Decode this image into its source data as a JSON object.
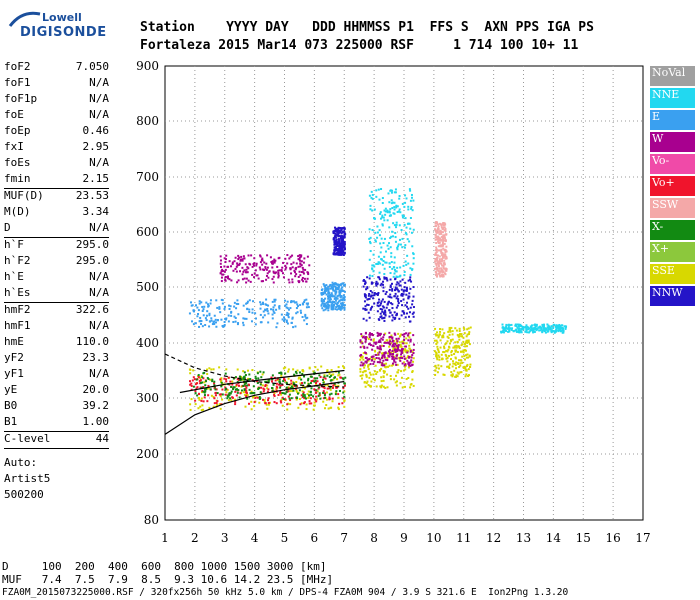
{
  "logo": {
    "line1": "Lowell",
    "line2": "DIGISONDE"
  },
  "header": {
    "row1": "Station    YYYY DAY   DDD HHMMSS P1  FFS S  AXN PPS IGA PS",
    "row2": "Fortaleza 2015 Mar14 073 225000 RSF     1 714 100 10+ 11"
  },
  "params": [
    {
      "k": "foF2",
      "v": "7.050"
    },
    {
      "k": "foF1",
      "v": "N/A"
    },
    {
      "k": "foF1p",
      "v": "N/A"
    },
    {
      "k": "foE",
      "v": "N/A"
    },
    {
      "k": "foEp",
      "v": "0.46"
    },
    {
      "k": "fxI",
      "v": "2.95"
    },
    {
      "k": "foEs",
      "v": "N/A"
    },
    {
      "k": "fmin",
      "v": "2.15"
    },
    {
      "k": "MUF(D)",
      "v": "23.53"
    },
    {
      "k": "M(D)",
      "v": "3.34"
    },
    {
      "k": "D",
      "v": "N/A"
    },
    {
      "k": "h`F",
      "v": "295.0"
    },
    {
      "k": "h`F2",
      "v": "295.0"
    },
    {
      "k": "h`E",
      "v": "N/A"
    },
    {
      "k": "h`Es",
      "v": "N/A"
    },
    {
      "k": "hmF2",
      "v": "322.6"
    },
    {
      "k": "hmF1",
      "v": "N/A"
    },
    {
      "k": "hmE",
      "v": "110.0"
    },
    {
      "k": "yF2",
      "v": "23.3"
    },
    {
      "k": "yF1",
      "v": "N/A"
    },
    {
      "k": "yE",
      "v": "20.0"
    },
    {
      "k": "B0",
      "v": "39.2"
    },
    {
      "k": "B1",
      "v": "1.00"
    },
    {
      "k": "C-level",
      "v": "44"
    }
  ],
  "auto": {
    "l1": "Auto:",
    "l2": "Artist5",
    "l3": "500200"
  },
  "legend": [
    {
      "label": "NoVal",
      "color": "#a0a0a0"
    },
    {
      "label": "NNE",
      "color": "#22d8f0"
    },
    {
      "label": "E",
      "color": "#3aa0f0"
    },
    {
      "label": "W",
      "color": "#a8008f"
    },
    {
      "label": "Vo-",
      "color": "#f04aa8"
    },
    {
      "label": "Vo+",
      "color": "#f0142c"
    },
    {
      "label": "SSW",
      "color": "#f4a8a8"
    },
    {
      "label": "X-",
      "color": "#128a12"
    },
    {
      "label": "X+",
      "color": "#8cc83c"
    },
    {
      "label": "SSE",
      "color": "#d8d800"
    },
    {
      "label": "NNW",
      "color": "#2414c8"
    }
  ],
  "footer": {
    "d_row": "D     100  200  400  600  800 1000 1500 3000 [km]",
    "muf_row": "MUF   7.4  7.5  7.9  8.5  9.3 10.6 14.2 23.5 [MHz]",
    "file_row": "FZA0M_2015073225000.RSF / 320fx256h 50 kHz 5.0 km / DPS-4 FZA0M 904 / 3.9 S 321.6 E  Ion2Png 1.3.20"
  },
  "chart_data": {
    "type": "scatter",
    "title": "",
    "xlabel": "",
    "ylabel": "",
    "xlim": [
      1,
      17
    ],
    "ylim": [
      80,
      900
    ],
    "x_ticks": [
      1,
      2,
      3,
      4,
      5,
      6,
      7,
      8,
      9,
      10,
      11,
      12,
      13,
      14,
      15,
      16,
      17
    ],
    "y_ticks": [
      80,
      200,
      300,
      400,
      500,
      600,
      700,
      800,
      900
    ],
    "grid": true,
    "clusters": [
      {
        "pol": "SSE",
        "x": [
          1.8,
          7.0
        ],
        "y": [
          280,
          360
        ]
      },
      {
        "pol": "SSE",
        "x": [
          7.5,
          9.3
        ],
        "y": [
          320,
          420
        ]
      },
      {
        "pol": "SSE",
        "x": [
          10.0,
          11.2
        ],
        "y": [
          340,
          430
        ]
      },
      {
        "pol": "E",
        "x": [
          1.8,
          5.8
        ],
        "y": [
          430,
          480
        ]
      },
      {
        "pol": "E",
        "x": [
          6.2,
          7.0
        ],
        "y": [
          460,
          510
        ]
      },
      {
        "pol": "NNW",
        "x": [
          7.6,
          9.3
        ],
        "y": [
          440,
          520
        ]
      },
      {
        "pol": "NNW",
        "x": [
          6.6,
          7.0
        ],
        "y": [
          560,
          610
        ]
      },
      {
        "pol": "W",
        "x": [
          2.8,
          5.8
        ],
        "y": [
          510,
          560
        ]
      },
      {
        "pol": "W",
        "x": [
          7.5,
          9.3
        ],
        "y": [
          360,
          420
        ]
      },
      {
        "pol": "Vo+",
        "x": [
          1.8,
          7.0
        ],
        "y": [
          290,
          340
        ]
      },
      {
        "pol": "NNE",
        "x": [
          7.8,
          9.3
        ],
        "y": [
          520,
          680
        ]
      },
      {
        "pol": "NNE",
        "x": [
          12.2,
          14.4
        ],
        "y": [
          420,
          435
        ]
      },
      {
        "pol": "SSW",
        "x": [
          10.0,
          10.4
        ],
        "y": [
          520,
          620
        ]
      },
      {
        "pol": "X-",
        "x": [
          1.9,
          7.0
        ],
        "y": [
          300,
          350
        ]
      }
    ],
    "trace_lines": [
      {
        "name": "",
        "x": [
          1.5,
          3,
          5,
          7
        ],
        "y": [
          310,
          325,
          338,
          350
        ]
      },
      {
        "name": "",
        "x": [
          1.0,
          2,
          3,
          4,
          5,
          6,
          7
        ],
        "y": [
          235,
          270,
          290,
          305,
          315,
          322,
          330
        ]
      },
      {
        "name": "",
        "x": [
          1.0,
          2,
          3,
          4,
          5,
          6,
          7
        ],
        "y": [
          380,
          355,
          340,
          330,
          325,
          322,
          320
        ]
      }
    ]
  }
}
